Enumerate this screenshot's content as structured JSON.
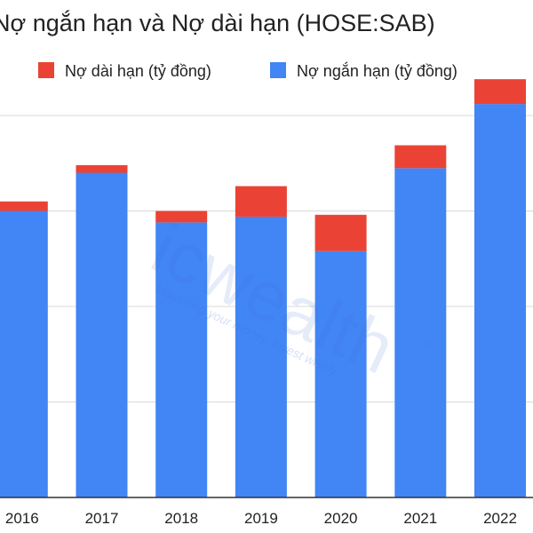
{
  "chart_data": {
    "type": "bar",
    "stacked": true,
    "title": "Nợ ngắn hạn và Nợ dài hạn (HOSE:SAB)",
    "categories": [
      "2016",
      "2017",
      "2018",
      "2019",
      "2020",
      "2021",
      "2022"
    ],
    "series": [
      {
        "name": "Nợ ngắn hạn (tỷ đồng)",
        "color": "#4285f4",
        "values": [
          7500,
          8500,
          7200,
          7350,
          6450,
          8620,
          10300
        ]
      },
      {
        "name": "Nợ dài hạn (tỷ đồng)",
        "color": "#ea4335",
        "values": [
          250,
          200,
          300,
          800,
          950,
          600,
          650
        ]
      }
    ],
    "legend_order": [
      1,
      0
    ],
    "legend_position": "top",
    "ylim": [
      0,
      10000
    ],
    "gridlines": [
      2500,
      5000,
      7500,
      10000
    ],
    "grid": true
  },
  "watermark": {
    "brand": "icwealth",
    "tagline": "Mastering your money, invest wisely",
    "symbol": "®"
  }
}
